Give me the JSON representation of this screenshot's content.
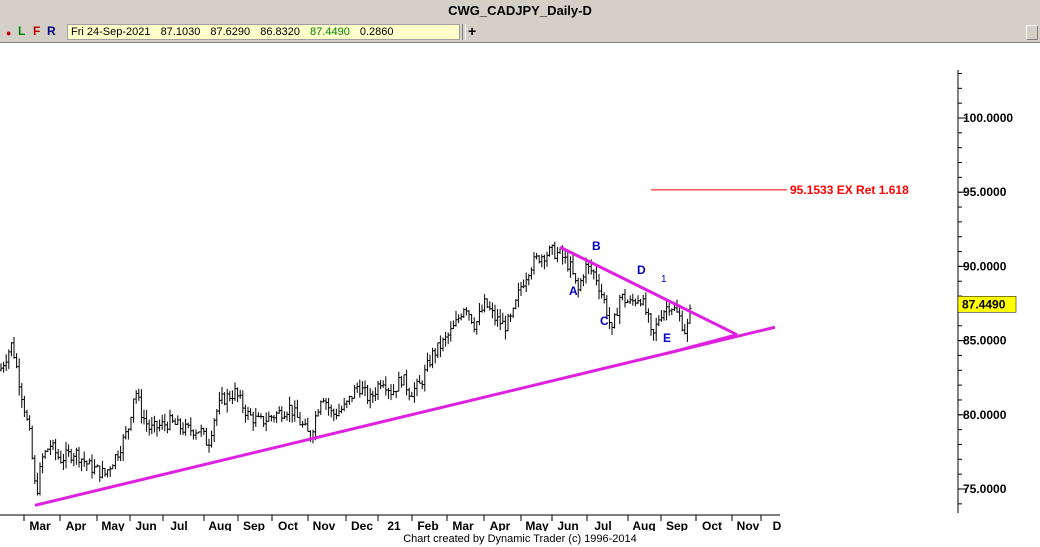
{
  "window": {
    "title": "CWG_CADJPY_Daily-D"
  },
  "toolbar": {
    "letters": [
      {
        "label": "L",
        "color": "#008000"
      },
      {
        "label": "F",
        "color": "#c00000"
      },
      {
        "label": "R",
        "color": "#000080"
      }
    ],
    "ohlc": {
      "date": "Fri 24-Sep-2021",
      "open": "87.1030",
      "high": "87.6290",
      "low": "86.8320",
      "close": "87.4490",
      "change": "0.2860"
    },
    "plus_label": "+"
  },
  "chart_data": {
    "type": "ohlc",
    "title": "CWG_CADJPY_Daily-D",
    "y_ticks": [
      "100.0000",
      "95.0000",
      "90.0000",
      "85.0000",
      "80.0000",
      "75.0000"
    ],
    "ylim": [
      73.0,
      104.0
    ],
    "x_ticks": [
      "Mar",
      "Apr",
      "May",
      "Jun",
      "Jul",
      "Aug",
      "Sep",
      "Oct",
      "Nov",
      "Dec",
      "21",
      "Feb",
      "Mar",
      "Apr",
      "May",
      "Jun",
      "Jul",
      "Aug",
      "Sep",
      "Oct",
      "Nov",
      "D"
    ],
    "last_price": "87.4490",
    "price_path": [
      [
        0,
        83.0
      ],
      [
        12,
        84.8
      ],
      [
        20,
        82.0
      ],
      [
        30,
        78.5
      ],
      [
        36,
        74.5
      ],
      [
        42,
        77.0
      ],
      [
        50,
        78.0
      ],
      [
        60,
        77.0
      ],
      [
        75,
        77.5
      ],
      [
        90,
        76.5
      ],
      [
        105,
        76.0
      ],
      [
        118,
        77.5
      ],
      [
        128,
        79.0
      ],
      [
        135,
        81.8
      ],
      [
        142,
        80.0
      ],
      [
        150,
        79.0
      ],
      [
        170,
        79.5
      ],
      [
        185,
        79.0
      ],
      [
        200,
        79.0
      ],
      [
        208,
        78.0
      ],
      [
        215,
        80.0
      ],
      [
        222,
        81.0
      ],
      [
        235,
        81.5
      ],
      [
        248,
        80.0
      ],
      [
        260,
        79.5
      ],
      [
        275,
        80.0
      ],
      [
        290,
        80.5
      ],
      [
        300,
        79.5
      ],
      [
        310,
        78.5
      ],
      [
        322,
        81.5
      ],
      [
        332,
        80.0
      ],
      [
        345,
        80.5
      ],
      [
        358,
        82.0
      ],
      [
        370,
        81.0
      ],
      [
        382,
        82.5
      ],
      [
        392,
        81.5
      ],
      [
        402,
        82.5
      ],
      [
        410,
        81.5
      ],
      [
        420,
        82.0
      ],
      [
        432,
        84.0
      ],
      [
        445,
        85.0
      ],
      [
        455,
        86.0
      ],
      [
        465,
        87.5
      ],
      [
        475,
        86.0
      ],
      [
        485,
        87.5
      ],
      [
        495,
        86.5
      ],
      [
        505,
        86.0
      ],
      [
        512,
        86.5
      ],
      [
        520,
        88.5
      ],
      [
        530,
        90.0
      ],
      [
        540,
        90.7
      ],
      [
        552,
        91.0
      ],
      [
        560,
        90.8
      ],
      [
        570,
        90.0
      ],
      [
        578,
        88.3
      ],
      [
        585,
        90.0
      ],
      [
        595,
        89.5
      ],
      [
        605,
        87.5
      ],
      [
        612,
        85.5
      ],
      [
        620,
        88.0
      ],
      [
        630,
        87.5
      ],
      [
        640,
        88.0
      ],
      [
        648,
        86.5
      ],
      [
        652,
        85.0
      ],
      [
        660,
        86.8
      ],
      [
        670,
        87.5
      ],
      [
        680,
        86.5
      ],
      [
        686,
        85.5
      ],
      [
        692,
        87.5
      ]
    ],
    "annotations": [
      {
        "label": "95.1533 EX Ret 1.618",
        "price": 95.1533,
        "color": "#ff0000"
      },
      {
        "label": "A",
        "color": "#0000cc"
      },
      {
        "label": "B",
        "color": "#0000cc"
      },
      {
        "label": "C",
        "color": "#0000cc"
      },
      {
        "label": "D",
        "color": "#0000cc"
      },
      {
        "label": "E",
        "color": "#0000cc"
      },
      {
        "label": "1",
        "color": "#0000cc"
      }
    ],
    "trendlines": {
      "color": "#e020e0",
      "lower": [
        [
          35,
          73.9
        ],
        [
          775,
          85.9
        ]
      ],
      "upper": [
        [
          560,
          91.3
        ],
        [
          737,
          85.4
        ]
      ],
      "wedge_bottom": [
        [
          665,
          84.1
        ],
        [
          737,
          85.4
        ]
      ]
    },
    "grid": false
  },
  "footer": {
    "credit": "Chart created by Dynamic Trader  (c)  1996-2014"
  }
}
